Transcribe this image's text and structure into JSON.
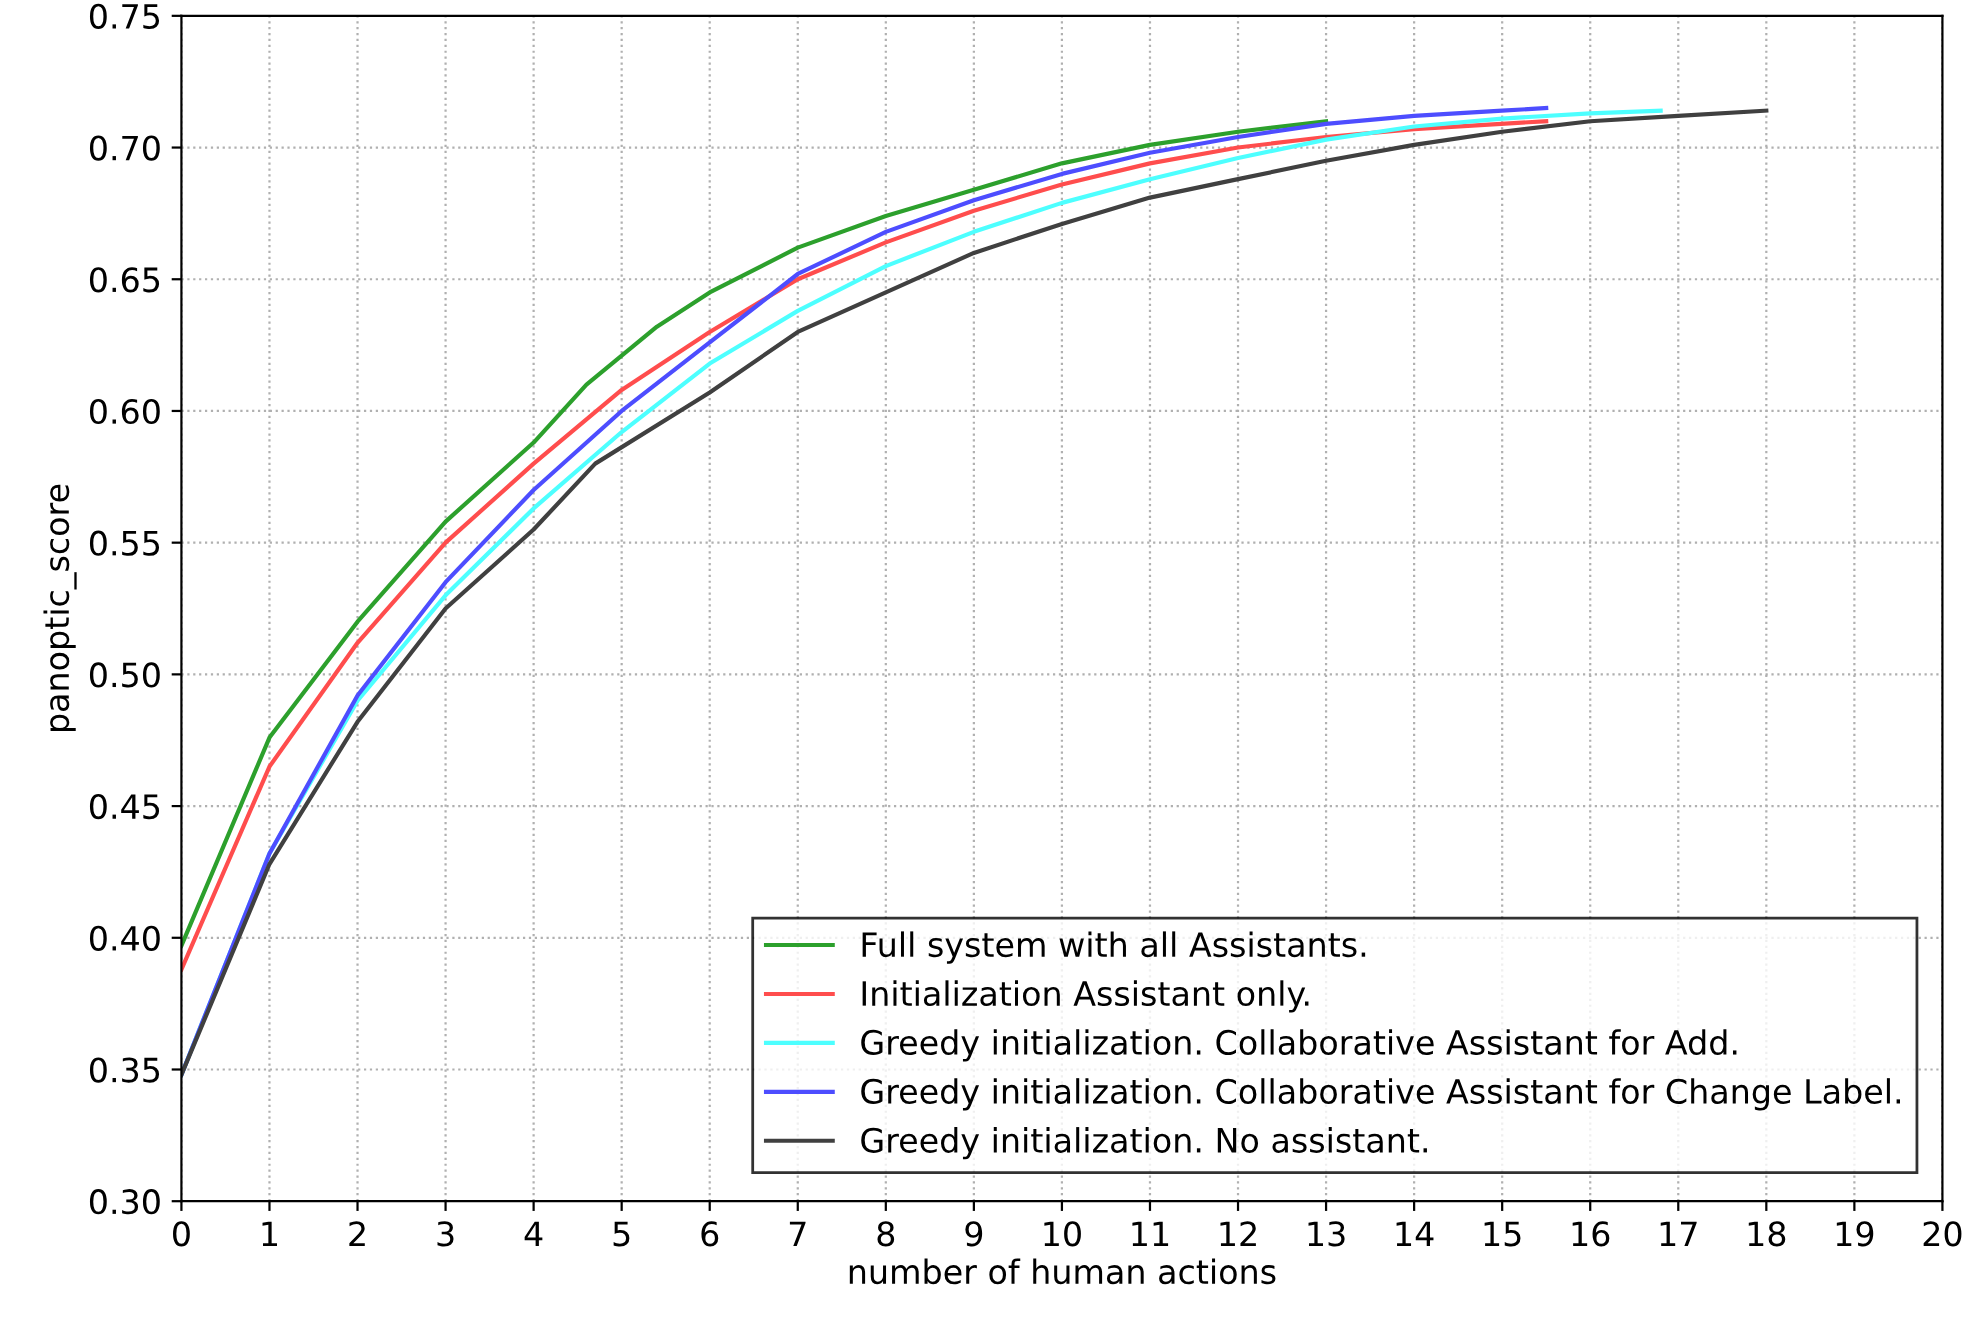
{
  "chart_data": {
    "type": "line",
    "xlabel": "number of human actions",
    "ylabel": "panoptic_score",
    "xlim": [
      0,
      20
    ],
    "xticks": [
      0,
      1,
      2,
      3,
      4,
      5,
      6,
      7,
      8,
      9,
      10,
      11,
      12,
      13,
      14,
      15,
      16,
      17,
      18,
      19,
      20
    ],
    "ylim": [
      0.3,
      0.75
    ],
    "yticks": [
      {
        "value": 0.3,
        "label": "0.30"
      },
      {
        "value": 0.35,
        "label": "0.35"
      },
      {
        "value": 0.4,
        "label": "0.40"
      },
      {
        "value": 0.45,
        "label": "0.45"
      },
      {
        "value": 0.5,
        "label": "0.50"
      },
      {
        "value": 0.55,
        "label": "0.55"
      },
      {
        "value": 0.6,
        "label": "0.60"
      },
      {
        "value": 0.65,
        "label": "0.65"
      },
      {
        "value": 0.7,
        "label": "0.70"
      },
      {
        "value": 0.75,
        "label": "0.75"
      }
    ],
    "grid": true,
    "legend": "bottom right",
    "marker": "none",
    "line_style": "solid",
    "series": [
      {
        "name": "Full system with all Assistants.",
        "color": "#2ca02c",
        "x": [
          0,
          1,
          2,
          3,
          4,
          4.6,
          5.4,
          6,
          7,
          8,
          9,
          10,
          11,
          12,
          13
        ],
        "values": [
          0.397,
          0.476,
          0.52,
          0.558,
          0.588,
          0.61,
          0.632,
          0.645,
          0.662,
          0.674,
          0.684,
          0.694,
          0.701,
          0.706,
          0.71
        ]
      },
      {
        "name": "Initialization Assistant only.",
        "color": "#ff4d4d",
        "x": [
          0,
          1,
          2,
          3,
          4,
          5,
          6,
          7,
          8,
          9,
          10,
          11,
          12,
          13,
          14,
          15.5
        ],
        "values": [
          0.388,
          0.465,
          0.512,
          0.55,
          0.58,
          0.608,
          0.63,
          0.65,
          0.664,
          0.676,
          0.686,
          0.694,
          0.7,
          0.704,
          0.707,
          0.71
        ]
      },
      {
        "name": "Greedy initialization. Collaborative Assistant for Add.",
        "color": "#4dffff",
        "x": [
          0,
          1,
          2,
          3,
          4,
          5,
          6,
          7,
          8,
          9,
          10,
          11,
          12,
          13,
          14,
          15,
          16,
          16.8
        ],
        "values": [
          0.348,
          0.432,
          0.49,
          0.53,
          0.563,
          0.592,
          0.618,
          0.638,
          0.655,
          0.668,
          0.679,
          0.688,
          0.696,
          0.703,
          0.708,
          0.711,
          0.713,
          0.714
        ]
      },
      {
        "name": "Greedy initialization. Collaborative Assistant for Change Label.",
        "color": "#4d4dff",
        "x": [
          0,
          1,
          2,
          3,
          4,
          5,
          6,
          7,
          8,
          9,
          10,
          11,
          12,
          13,
          14,
          15,
          15.5
        ],
        "values": [
          0.348,
          0.432,
          0.492,
          0.535,
          0.57,
          0.6,
          0.626,
          0.652,
          0.668,
          0.68,
          0.69,
          0.698,
          0.704,
          0.709,
          0.712,
          0.714,
          0.715
        ]
      },
      {
        "name": "Greedy initialization. No assistant.",
        "color": "#404040",
        "x": [
          0,
          1,
          2,
          3,
          4,
          4.7,
          6,
          7,
          8,
          9,
          10,
          11,
          12,
          13,
          14,
          15,
          16,
          17,
          18
        ],
        "values": [
          0.348,
          0.428,
          0.482,
          0.525,
          0.555,
          0.58,
          0.607,
          0.63,
          0.645,
          0.66,
          0.671,
          0.681,
          0.688,
          0.695,
          0.701,
          0.706,
          0.71,
          0.712,
          0.714
        ]
      }
    ]
  }
}
